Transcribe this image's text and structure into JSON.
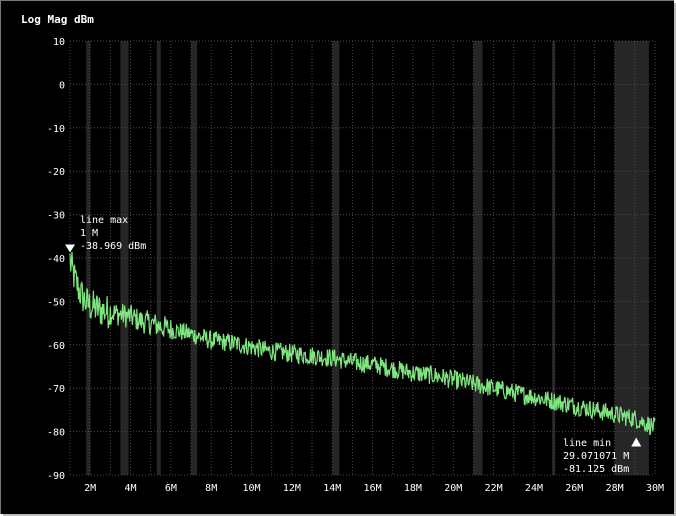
{
  "panel": {
    "title": "Log Mag dBm"
  },
  "chart_data": {
    "type": "line",
    "title": "Log Mag dBm",
    "xlabel": "",
    "ylabel": "",
    "xlim": [
      1,
      30
    ],
    "ylim": [
      -90,
      10
    ],
    "grid": true,
    "x_ticks": [
      2,
      4,
      6,
      8,
      10,
      12,
      14,
      16,
      18,
      20,
      22,
      24,
      26,
      28,
      30
    ],
    "x_tick_labels": [
      "2M",
      "4M",
      "6M",
      "8M",
      "10M",
      "12M",
      "14M",
      "16M",
      "18M",
      "20M",
      "22M",
      "24M",
      "26M",
      "28M",
      "30M"
    ],
    "y_ticks": [
      10,
      0,
      -10,
      -20,
      -30,
      -40,
      -50,
      -60,
      -70,
      -80,
      -90
    ],
    "y_tick_labels": [
      "10",
      "0",
      "-10",
      "-20",
      "-30",
      "-40",
      "-50",
      "-60",
      "-70",
      "-80",
      "-90"
    ],
    "highlight_bands": [
      [
        1.8,
        2.0
      ],
      [
        3.5,
        3.9
      ],
      [
        5.3,
        5.5
      ],
      [
        7.0,
        7.3
      ],
      [
        14.0,
        14.35
      ],
      [
        21.0,
        21.45
      ],
      [
        24.9,
        25.0
      ],
      [
        28.0,
        29.7
      ]
    ],
    "series": [
      {
        "color": "#7fe67f",
        "x": [
          1,
          1.25,
          1.5,
          1.75,
          2,
          2.5,
          3,
          3.5,
          4,
          4.5,
          5,
          6,
          7,
          8,
          9,
          10,
          11,
          12,
          13,
          14,
          15,
          16,
          17,
          18,
          19,
          20,
          21,
          22,
          23,
          24,
          25,
          26,
          27,
          28,
          29,
          29.5,
          30
        ],
        "y": [
          -41,
          -45,
          -48,
          -50,
          -51,
          -52,
          -52.5,
          -53,
          -53.5,
          -54.5,
          -55,
          -56.5,
          -57.5,
          -59,
          -59.5,
          -60.5,
          -61.5,
          -62,
          -62.5,
          -63,
          -64,
          -64.5,
          -65.5,
          -66.5,
          -67,
          -68,
          -69,
          -70,
          -71,
          -72,
          -73,
          -74,
          -75,
          -76,
          -77,
          -78,
          -79
        ]
      }
    ],
    "markers": [
      {
        "label": "line max",
        "freq": "1 M",
        "value": "-38.969 dBm",
        "x": 1,
        "y": -38.969
      },
      {
        "label": "line min",
        "freq": "29.071071 M",
        "value": "-81.125 dBm",
        "x": 29.071071,
        "y": -81.125
      }
    ]
  }
}
